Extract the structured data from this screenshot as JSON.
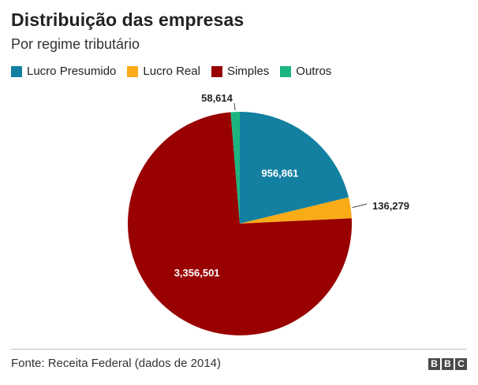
{
  "chart_data": {
    "type": "pie",
    "title": "Distribuição das empresas",
    "subtitle": "Por regime tributário",
    "legend_position": "top-left",
    "slices": [
      {
        "label": "Lucro Presumido",
        "value": 956861,
        "value_label": "956,861",
        "color": "#1380A1",
        "label_color": "#ffffff",
        "label_placement": "inside"
      },
      {
        "label": "Lucro Real",
        "value": 136279,
        "value_label": "136,279",
        "color": "#FAAB18",
        "label_color": "#222222",
        "label_placement": "outside"
      },
      {
        "label": "Simples",
        "value": 3356501,
        "value_label": "3,356,501",
        "color": "#990000",
        "label_color": "#ffffff",
        "label_placement": "inside"
      },
      {
        "label": "Outros",
        "value": 58614,
        "value_label": "58,614",
        "color": "#1DB57F",
        "label_color": "#222222",
        "label_placement": "outside"
      }
    ]
  },
  "footer": {
    "source": "Fonte: Receita Federal (dados de 2014)",
    "logo_letters": [
      "B",
      "B",
      "C"
    ]
  }
}
